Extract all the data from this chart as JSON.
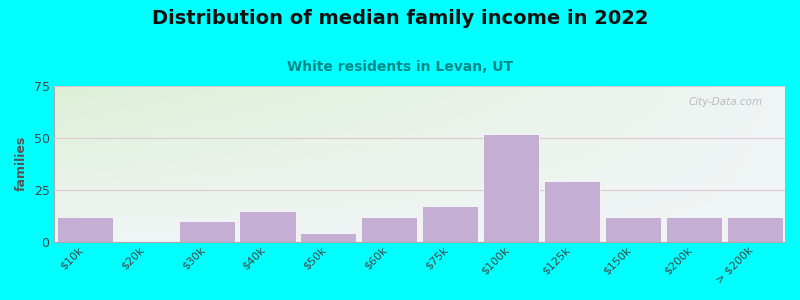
{
  "title": "Distribution of median family income in 2022",
  "subtitle": "White residents in Levan, UT",
  "ylabel": "families",
  "bar_labels": [
    "$10k",
    "$20k",
    "$30k",
    "$40k",
    "$50k",
    "$60k",
    "$75k",
    "$100k",
    "$125k",
    "$150k",
    "$200k",
    "> $200k"
  ],
  "bar_values": [
    12,
    0,
    10,
    15,
    4,
    12,
    17,
    52,
    29,
    12,
    12,
    12
  ],
  "ylim": [
    0,
    75
  ],
  "yticks": [
    0,
    25,
    50,
    75
  ],
  "bar_color": "#c4aed4",
  "background_color": "#00ffff",
  "plot_bg_color_topleft": "#ddf0d8",
  "plot_bg_color_topright": "#e8f0f0",
  "plot_bg_color_bottom": "#d8e8f0",
  "title_fontsize": 14,
  "subtitle_fontsize": 10,
  "ylabel_fontsize": 9,
  "watermark": "City-Data.com",
  "grid_color": "#e0c8d0",
  "title_color": "#111111",
  "subtitle_color": "#008888",
  "ylabel_color": "#555555",
  "tick_color": "#444444"
}
